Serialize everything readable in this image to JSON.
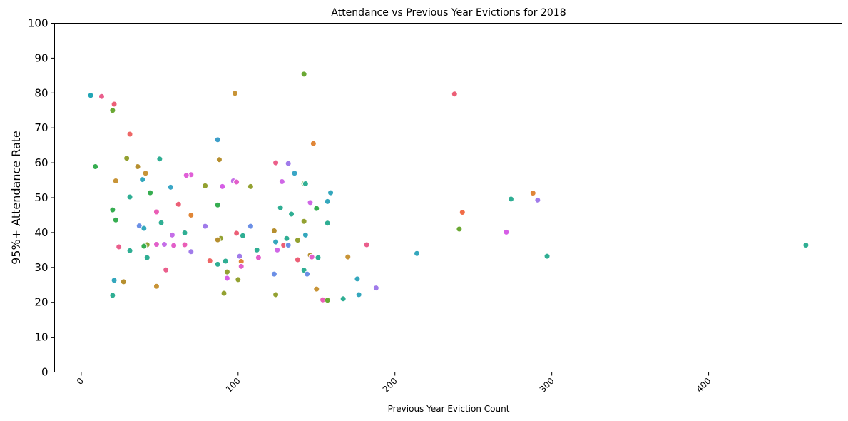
{
  "chart_data": {
    "type": "scatter",
    "title": "Attendance vs Previous Year Evictions for 2018",
    "xlabel": "Previous Year Eviction Count",
    "ylabel": "95%+ Attendance Rate",
    "xlim": [
      -17,
      485
    ],
    "ylim": [
      0,
      100
    ],
    "xticks": [
      0,
      100,
      200,
      300,
      400
    ],
    "xtick_labels": [
      "0",
      "100",
      "200",
      "300",
      "400"
    ],
    "yticks": [
      0,
      10,
      20,
      30,
      40,
      50,
      60,
      70,
      80,
      90,
      100
    ],
    "ytick_labels": [
      "0",
      "10",
      "20",
      "30",
      "40",
      "50",
      "60",
      "70",
      "80",
      "90",
      "100"
    ],
    "grid": false,
    "legend": "none",
    "points": [
      {
        "x": 6,
        "y": 79.3,
        "color": "#22a6b6"
      },
      {
        "x": 13,
        "y": 79.0,
        "color": "#ea5e8c"
      },
      {
        "x": 21,
        "y": 76.8,
        "color": "#ec5f76"
      },
      {
        "x": 20,
        "y": 75.0,
        "color": "#6aa833"
      },
      {
        "x": 31,
        "y": 68.2,
        "color": "#ee6766"
      },
      {
        "x": 87,
        "y": 66.6,
        "color": "#3d9ec9"
      },
      {
        "x": 148,
        "y": 65.5,
        "color": "#e08637"
      },
      {
        "x": 29,
        "y": 61.3,
        "color": "#93a131"
      },
      {
        "x": 50,
        "y": 61.1,
        "color": "#2fae93"
      },
      {
        "x": 88,
        "y": 60.9,
        "color": "#b68f2f"
      },
      {
        "x": 124,
        "y": 60.0,
        "color": "#ec5f8a"
      },
      {
        "x": 132,
        "y": 59.8,
        "color": "#a07bea"
      },
      {
        "x": 9,
        "y": 58.9,
        "color": "#36ad50"
      },
      {
        "x": 36,
        "y": 58.9,
        "color": "#b68f2f"
      },
      {
        "x": 136,
        "y": 57.0,
        "color": "#3aa6c6"
      },
      {
        "x": 41,
        "y": 57.0,
        "color": "#c89437"
      },
      {
        "x": 70,
        "y": 56.6,
        "color": "#e05fd7"
      },
      {
        "x": 67,
        "y": 56.4,
        "color": "#e05fd7"
      },
      {
        "x": 39,
        "y": 55.2,
        "color": "#34a7bd"
      },
      {
        "x": 22,
        "y": 54.8,
        "color": "#c89437"
      },
      {
        "x": 97,
        "y": 54.8,
        "color": "#c56ee8"
      },
      {
        "x": 99,
        "y": 54.5,
        "color": "#e25fca"
      },
      {
        "x": 128,
        "y": 54.6,
        "color": "#cf67e6"
      },
      {
        "x": 142,
        "y": 54.0,
        "color": "#6aa833"
      },
      {
        "x": 143,
        "y": 54.0,
        "color": "#2fae93"
      },
      {
        "x": 79,
        "y": 53.4,
        "color": "#93a131"
      },
      {
        "x": 90,
        "y": 53.2,
        "color": "#d65ee6"
      },
      {
        "x": 108,
        "y": 53.2,
        "color": "#93a131"
      },
      {
        "x": 57,
        "y": 53.0,
        "color": "#3aa6c6"
      },
      {
        "x": 159,
        "y": 51.4,
        "color": "#34a7bd"
      },
      {
        "x": 44,
        "y": 51.4,
        "color": "#36ad50"
      },
      {
        "x": 288,
        "y": 51.3,
        "color": "#e08637"
      },
      {
        "x": 31,
        "y": 50.2,
        "color": "#2fae93"
      },
      {
        "x": 274,
        "y": 49.6,
        "color": "#2fae93"
      },
      {
        "x": 291,
        "y": 49.3,
        "color": "#a07bea"
      },
      {
        "x": 157,
        "y": 48.9,
        "color": "#34a7bd"
      },
      {
        "x": 146,
        "y": 48.6,
        "color": "#cf67e6"
      },
      {
        "x": 62,
        "y": 48.1,
        "color": "#ec5f76"
      },
      {
        "x": 87,
        "y": 47.9,
        "color": "#36ad50"
      },
      {
        "x": 127,
        "y": 47.1,
        "color": "#2fae93"
      },
      {
        "x": 150,
        "y": 46.9,
        "color": "#36ad50"
      },
      {
        "x": 20,
        "y": 46.5,
        "color": "#36ad50"
      },
      {
        "x": 48,
        "y": 45.9,
        "color": "#ea5eb6"
      },
      {
        "x": 243,
        "y": 45.8,
        "color": "#f16c47"
      },
      {
        "x": 134,
        "y": 45.3,
        "color": "#2fae93"
      },
      {
        "x": 70,
        "y": 45.0,
        "color": "#e08637"
      },
      {
        "x": 22,
        "y": 43.6,
        "color": "#36ad50"
      },
      {
        "x": 142,
        "y": 43.2,
        "color": "#93a131"
      },
      {
        "x": 51,
        "y": 42.8,
        "color": "#2fae93"
      },
      {
        "x": 157,
        "y": 42.7,
        "color": "#2fae93"
      },
      {
        "x": 37,
        "y": 41.9,
        "color": "#6b8fe6"
      },
      {
        "x": 79,
        "y": 41.8,
        "color": "#a07bea"
      },
      {
        "x": 108,
        "y": 41.8,
        "color": "#6b8fe6"
      },
      {
        "x": 40,
        "y": 41.2,
        "color": "#34a7bd"
      },
      {
        "x": 241,
        "y": 41.0,
        "color": "#6aa833"
      },
      {
        "x": 123,
        "y": 40.5,
        "color": "#b68f2f"
      },
      {
        "x": 271,
        "y": 40.1,
        "color": "#d65ee6"
      },
      {
        "x": 66,
        "y": 39.9,
        "color": "#2fae93"
      },
      {
        "x": 99,
        "y": 39.8,
        "color": "#ec5f76"
      },
      {
        "x": 58,
        "y": 39.3,
        "color": "#c56ee8"
      },
      {
        "x": 143,
        "y": 39.3,
        "color": "#34a7bd"
      },
      {
        "x": 103,
        "y": 39.1,
        "color": "#2fae93"
      },
      {
        "x": 89,
        "y": 38.3,
        "color": "#93a131"
      },
      {
        "x": 131,
        "y": 38.3,
        "color": "#2fae93"
      },
      {
        "x": 87,
        "y": 37.9,
        "color": "#b68f2f"
      },
      {
        "x": 138,
        "y": 37.8,
        "color": "#93a131"
      },
      {
        "x": 124,
        "y": 37.3,
        "color": "#34a7bd"
      },
      {
        "x": 48,
        "y": 36.6,
        "color": "#e25fca"
      },
      {
        "x": 53,
        "y": 36.6,
        "color": "#c56ee8"
      },
      {
        "x": 59,
        "y": 36.3,
        "color": "#e25fca"
      },
      {
        "x": 66,
        "y": 36.5,
        "color": "#ea5eb6"
      },
      {
        "x": 42,
        "y": 36.5,
        "color": "#93a131"
      },
      {
        "x": 40,
        "y": 36.1,
        "color": "#36ad50"
      },
      {
        "x": 129,
        "y": 36.4,
        "color": "#ec5f76"
      },
      {
        "x": 132,
        "y": 36.4,
        "color": "#6b8fe6"
      },
      {
        "x": 182,
        "y": 36.5,
        "color": "#ea5e8c"
      },
      {
        "x": 462,
        "y": 36.4,
        "color": "#2fae93"
      },
      {
        "x": 24,
        "y": 35.9,
        "color": "#ea5e8c"
      },
      {
        "x": 112,
        "y": 35.0,
        "color": "#2fae93"
      },
      {
        "x": 125,
        "y": 35.0,
        "color": "#cf67e6"
      },
      {
        "x": 31,
        "y": 34.8,
        "color": "#2fae93"
      },
      {
        "x": 70,
        "y": 34.5,
        "color": "#a07bea"
      },
      {
        "x": 214,
        "y": 34.0,
        "color": "#34a7bd"
      },
      {
        "x": 146,
        "y": 33.5,
        "color": "#b68f2f"
      },
      {
        "x": 147,
        "y": 33.0,
        "color": "#e25fca"
      },
      {
        "x": 101,
        "y": 33.2,
        "color": "#a07bea"
      },
      {
        "x": 297,
        "y": 33.2,
        "color": "#2fae93"
      },
      {
        "x": 170,
        "y": 33.0,
        "color": "#c89437"
      },
      {
        "x": 113,
        "y": 32.8,
        "color": "#e25fca"
      },
      {
        "x": 42,
        "y": 32.8,
        "color": "#2fae93"
      },
      {
        "x": 151,
        "y": 32.8,
        "color": "#2fae93"
      },
      {
        "x": 138,
        "y": 32.2,
        "color": "#ec5f76"
      },
      {
        "x": 82,
        "y": 31.9,
        "color": "#ee6766"
      },
      {
        "x": 92,
        "y": 31.8,
        "color": "#2fae93"
      },
      {
        "x": 102,
        "y": 31.7,
        "color": "#e08637"
      },
      {
        "x": 87,
        "y": 30.9,
        "color": "#2fae93"
      },
      {
        "x": 102,
        "y": 30.3,
        "color": "#e25fca"
      },
      {
        "x": 54,
        "y": 29.3,
        "color": "#ea5e8c"
      },
      {
        "x": 142,
        "y": 29.2,
        "color": "#2fae93"
      },
      {
        "x": 93,
        "y": 28.7,
        "color": "#93a131"
      },
      {
        "x": 123,
        "y": 28.1,
        "color": "#6b8fe6"
      },
      {
        "x": 144,
        "y": 28.1,
        "color": "#6b8fe6"
      },
      {
        "x": 176,
        "y": 26.7,
        "color": "#34a7bd"
      },
      {
        "x": 93,
        "y": 26.9,
        "color": "#d65ee6"
      },
      {
        "x": 100,
        "y": 26.5,
        "color": "#93a131"
      },
      {
        "x": 21,
        "y": 26.3,
        "color": "#34a7bd"
      },
      {
        "x": 27,
        "y": 25.9,
        "color": "#b68f2f"
      },
      {
        "x": 48,
        "y": 24.6,
        "color": "#c89437"
      },
      {
        "x": 188,
        "y": 24.1,
        "color": "#a07bea"
      },
      {
        "x": 150,
        "y": 23.8,
        "color": "#c89437"
      },
      {
        "x": 91,
        "y": 22.6,
        "color": "#93a131"
      },
      {
        "x": 124,
        "y": 22.2,
        "color": "#93a131"
      },
      {
        "x": 177,
        "y": 22.2,
        "color": "#34a7bd"
      },
      {
        "x": 20,
        "y": 22.0,
        "color": "#2fae93"
      },
      {
        "x": 167,
        "y": 21.0,
        "color": "#2fae93"
      },
      {
        "x": 154,
        "y": 20.7,
        "color": "#ea5eb6"
      },
      {
        "x": 157,
        "y": 20.6,
        "color": "#6aa833"
      },
      {
        "x": 98,
        "y": 79.9,
        "color": "#c89437"
      },
      {
        "x": 238,
        "y": 79.7,
        "color": "#ec5f76"
      },
      {
        "x": 142,
        "y": 85.4,
        "color": "#6aa833"
      }
    ]
  }
}
